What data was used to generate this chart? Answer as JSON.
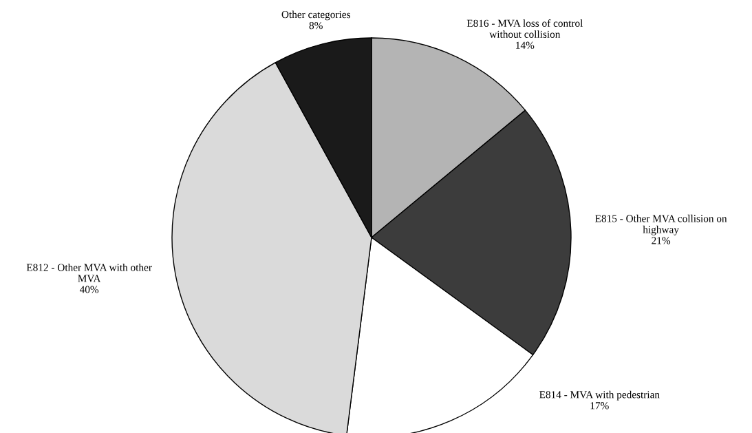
{
  "chart_data": {
    "type": "pie",
    "categories": [
      "E816 - MVA loss of control\nwithout collision",
      "E815 - Other MVA collision on\nhighway",
      "E814 - MVA with pedestrian",
      "E812 - Other MVA with other\nMVA",
      "Other categories"
    ],
    "values": [
      14,
      21,
      17,
      40,
      8
    ],
    "colors": [
      "#b4b4b4",
      "#3c3c3c",
      "#ffffff",
      "#dadada",
      "#1a1a1a"
    ],
    "value_labels": [
      "14%",
      "21%",
      "17%",
      "40%",
      "8%"
    ]
  }
}
